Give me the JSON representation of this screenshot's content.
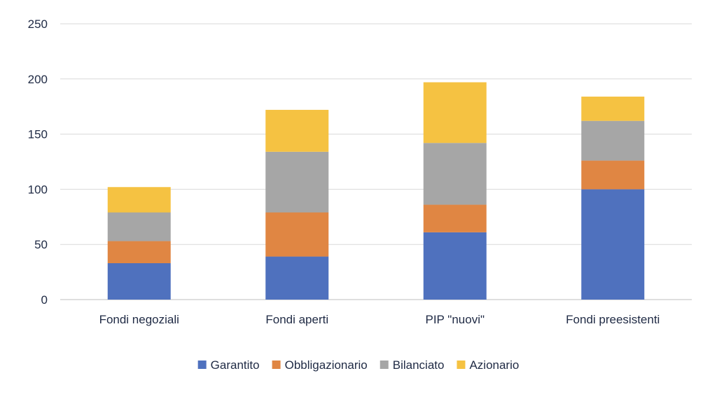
{
  "chart_data": {
    "type": "bar",
    "stacked": true,
    "categories": [
      "Fondi negoziali",
      "Fondi aperti",
      "PIP \"nuovi\"",
      "Fondi preesistenti"
    ],
    "series": [
      {
        "name": "Garantito",
        "color": "#4f71be",
        "values": [
          33,
          39,
          61,
          100
        ]
      },
      {
        "name": "Obbligazionario",
        "color": "#e08643",
        "values": [
          20,
          40,
          25,
          26
        ]
      },
      {
        "name": "Bilanciato",
        "color": "#a6a6a6",
        "values": [
          26,
          55,
          56,
          36
        ]
      },
      {
        "name": "Azionario",
        "color": "#f5c242",
        "values": [
          23,
          38,
          55,
          22
        ]
      }
    ],
    "ylim": [
      0,
      250
    ],
    "yticks": [
      0,
      50,
      100,
      150,
      200,
      250
    ],
    "grid": true,
    "legend_position": "bottom"
  }
}
